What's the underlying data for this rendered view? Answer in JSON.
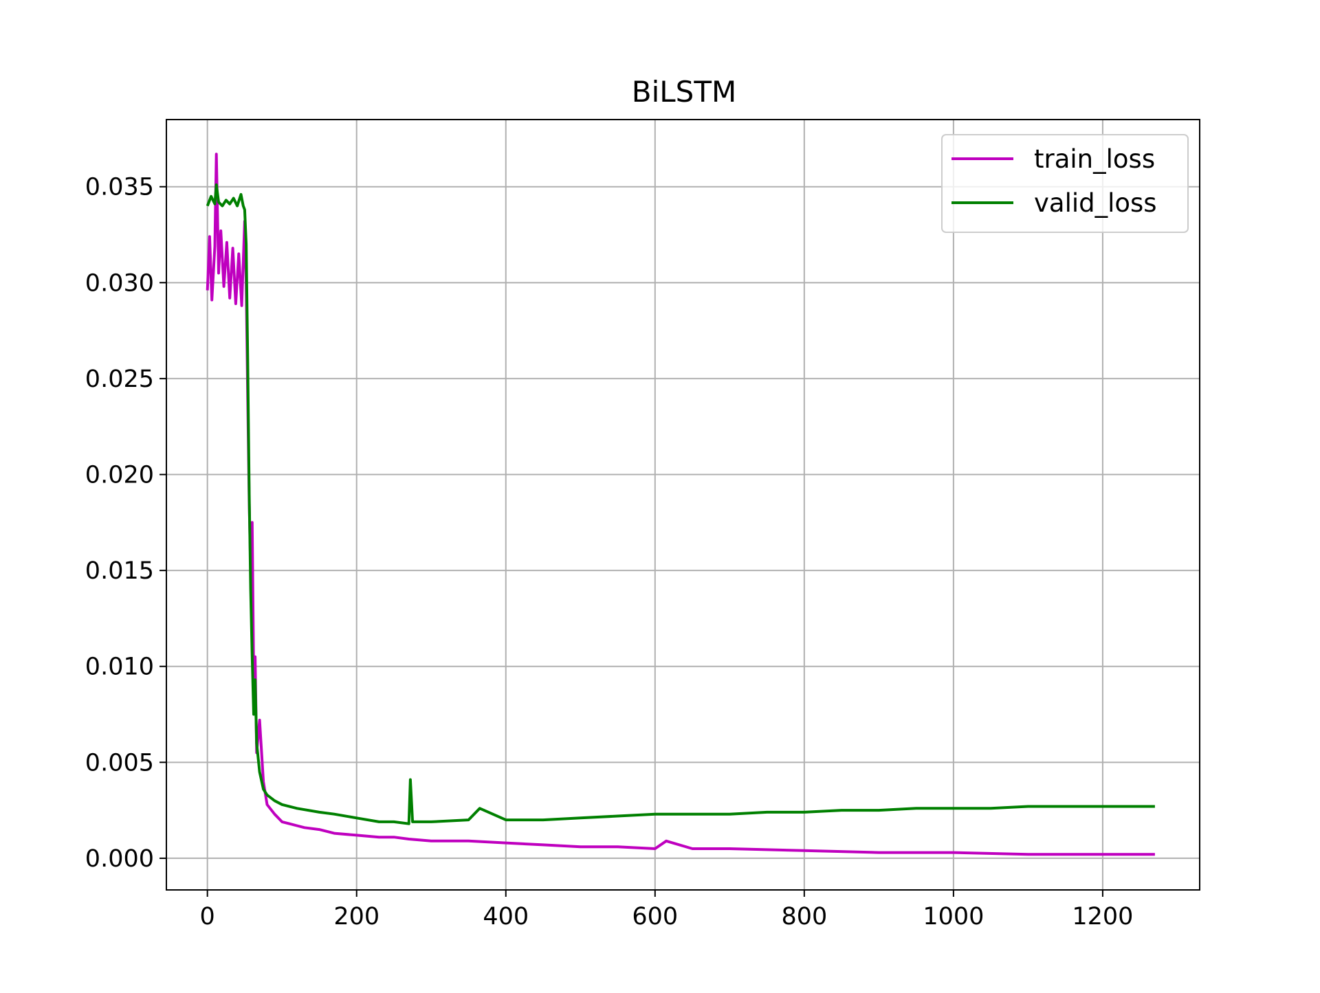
{
  "chart_data": {
    "type": "line",
    "title": "BiLSTM",
    "xlabel": "",
    "ylabel": "",
    "xlim": [
      -55,
      1330
    ],
    "ylim": [
      -0.00165,
      0.0385
    ],
    "xticks": [
      0,
      200,
      400,
      600,
      800,
      1000,
      1200
    ],
    "xtick_labels": [
      "0",
      "200",
      "400",
      "600",
      "800",
      "1000",
      "1200"
    ],
    "yticks": [
      0.0,
      0.005,
      0.01,
      0.015,
      0.02,
      0.025,
      0.03,
      0.035
    ],
    "ytick_labels": [
      "0.000",
      "0.005",
      "0.010",
      "0.015",
      "0.020",
      "0.025",
      "0.030",
      "0.035"
    ],
    "grid": true,
    "legend_position": "top-right",
    "series": [
      {
        "name": "train_loss",
        "color": "#bf00bf",
        "x": [
          0,
          3,
          6,
          10,
          12,
          15,
          18,
          22,
          26,
          30,
          34,
          38,
          42,
          46,
          50,
          52,
          54,
          56,
          58,
          60,
          62,
          64,
          66,
          70,
          75,
          80,
          90,
          100,
          110,
          120,
          130,
          150,
          170,
          200,
          230,
          250,
          270,
          300,
          350,
          400,
          450,
          500,
          550,
          600,
          615,
          650,
          700,
          800,
          900,
          1000,
          1100,
          1200,
          1270
        ],
        "y": [
          0.0296,
          0.0324,
          0.0291,
          0.0319,
          0.0367,
          0.0305,
          0.0327,
          0.0298,
          0.0321,
          0.0292,
          0.0318,
          0.0289,
          0.0315,
          0.0288,
          0.0332,
          0.03,
          0.024,
          0.0185,
          0.015,
          0.0175,
          0.0095,
          0.0105,
          0.0055,
          0.0072,
          0.004,
          0.0028,
          0.0023,
          0.0019,
          0.0018,
          0.0017,
          0.0016,
          0.0015,
          0.0013,
          0.0012,
          0.0011,
          0.0011,
          0.001,
          0.0009,
          0.0009,
          0.0008,
          0.0007,
          0.0006,
          0.0006,
          0.0005,
          0.0009,
          0.0005,
          0.0005,
          0.0004,
          0.0003,
          0.0003,
          0.0002,
          0.0002,
          0.0002
        ]
      },
      {
        "name": "valid_loss",
        "color": "#008000",
        "x": [
          0,
          5,
          10,
          12,
          15,
          20,
          25,
          30,
          35,
          40,
          45,
          48,
          50,
          52,
          54,
          56,
          58,
          60,
          62,
          64,
          66,
          70,
          75,
          80,
          90,
          100,
          120,
          150,
          170,
          200,
          230,
          250,
          270,
          272,
          275,
          300,
          350,
          365,
          400,
          450,
          500,
          550,
          600,
          650,
          700,
          750,
          800,
          850,
          900,
          950,
          1000,
          1050,
          1100,
          1150,
          1200,
          1250,
          1270
        ],
        "y": [
          0.034,
          0.0345,
          0.0341,
          0.0351,
          0.0342,
          0.034,
          0.0343,
          0.0341,
          0.0344,
          0.034,
          0.0346,
          0.034,
          0.0338,
          0.032,
          0.026,
          0.019,
          0.014,
          0.0105,
          0.0075,
          0.0093,
          0.006,
          0.0045,
          0.0036,
          0.0033,
          0.003,
          0.0028,
          0.0026,
          0.0024,
          0.0023,
          0.0021,
          0.0019,
          0.0019,
          0.0018,
          0.0041,
          0.0019,
          0.0019,
          0.002,
          0.0026,
          0.002,
          0.002,
          0.0021,
          0.0022,
          0.0023,
          0.0023,
          0.0023,
          0.0024,
          0.0024,
          0.0025,
          0.0025,
          0.0026,
          0.0026,
          0.0026,
          0.0027,
          0.0027,
          0.0027,
          0.0027,
          0.0027
        ]
      }
    ]
  }
}
